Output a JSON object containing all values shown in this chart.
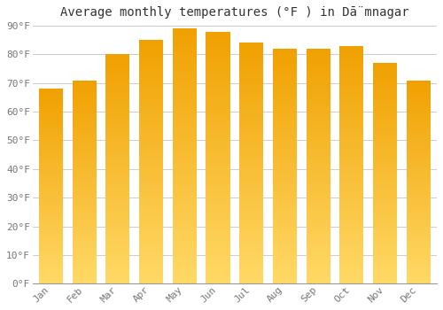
{
  "title": "Average monthly temperatures (°F ) in Dā̈mnagar",
  "months": [
    "Jan",
    "Feb",
    "Mar",
    "Apr",
    "May",
    "Jun",
    "Jul",
    "Aug",
    "Sep",
    "Oct",
    "Nov",
    "Dec"
  ],
  "values": [
    68,
    71,
    80,
    85,
    89,
    88,
    84,
    82,
    82,
    83,
    77,
    71
  ],
  "bar_color_top": "#F5A800",
  "bar_color_bottom": "#FFD966",
  "ylim": [
    0,
    90
  ],
  "yticks": [
    0,
    10,
    20,
    30,
    40,
    50,
    60,
    70,
    80,
    90
  ],
  "ytick_labels": [
    "0°F",
    "10°F",
    "20°F",
    "30°F",
    "40°F",
    "50°F",
    "60°F",
    "70°F",
    "80°F",
    "90°F"
  ],
  "background_color": "#FFFFFF",
  "grid_color": "#CCCCCC",
  "title_fontsize": 10,
  "tick_fontsize": 8,
  "title_color": "#333333",
  "tick_color": "#777777",
  "bar_width": 0.72
}
